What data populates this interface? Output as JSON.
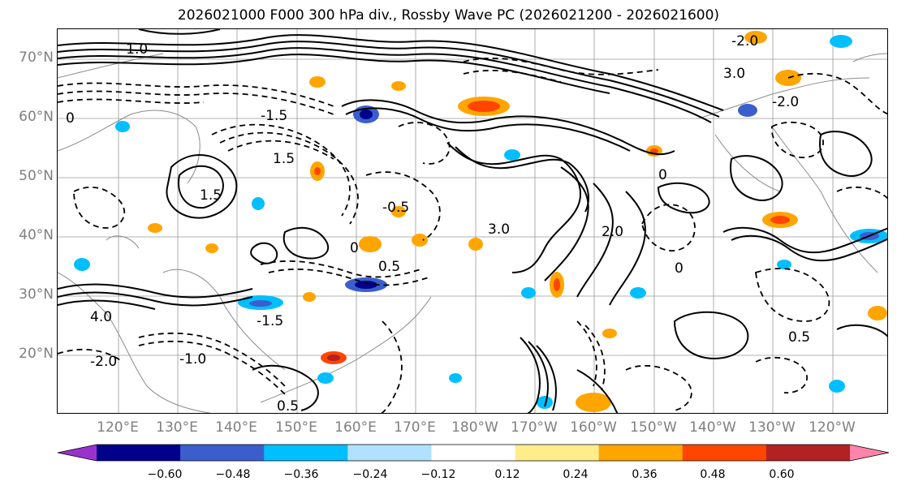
{
  "title": "2026021000 F000 300 hPa div., Rossby Wave PC (2026021200 - 2026021600)",
  "latitude_labels": [
    "70°N",
    "60°N",
    "50°N",
    "40°N",
    "30°N",
    "20°N"
  ],
  "longitude_labels": [
    "120°E",
    "130°E",
    "140°E",
    "150°E",
    "160°E",
    "170°E",
    "180°W",
    "170°W",
    "160°W",
    "150°W",
    "140°W",
    "130°W",
    "120°W"
  ],
  "colorbar": {
    "ticks": [
      "−0.60",
      "−0.48",
      "−0.36",
      "−0.24",
      "−0.12",
      "0.12",
      "0.24",
      "0.36",
      "0.48",
      "0.60"
    ],
    "colors": [
      "#9932cc",
      "#00008b",
      "#3a5fcd",
      "#00bfff",
      "#b0e2ff",
      "#ffffff",
      "#ffec8b",
      "#ffa500",
      "#ff4500",
      "#b22222",
      "#ff83aa"
    ]
  },
  "contour_labels": [
    "0",
    "1.5",
    "2.0",
    "3.0",
    "4.0",
    "-0.5",
    "-1.0",
    "-1.5",
    "-2.0",
    "0.5"
  ]
}
